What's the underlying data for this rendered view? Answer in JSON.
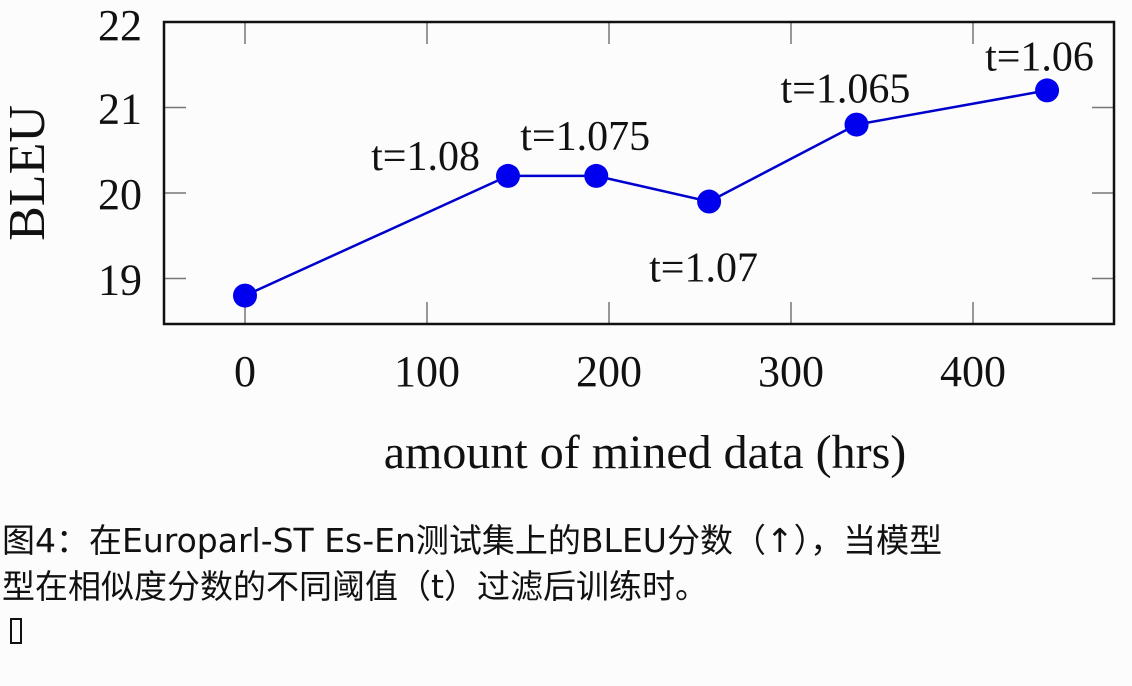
{
  "chart_data": {
    "type": "line",
    "title": "",
    "xlabel": "amount of mined data (hrs)",
    "ylabel": "BLEU",
    "xlim": [
      -45,
      477
    ],
    "ylim": [
      18.5,
      22
    ],
    "xticks": [
      0,
      100,
      200,
      300,
      400
    ],
    "yticks": [
      19,
      20,
      21,
      22
    ],
    "grid": false,
    "legend": null,
    "series": [
      {
        "name": "BLEU",
        "color": "#0000e6",
        "x": [
          0,
          144.5,
          193,
          255,
          336,
          440.7
        ],
        "values": [
          18.8,
          20.2,
          20.2,
          19.9,
          20.8,
          21.2
        ],
        "annotations": [
          "",
          "t=1.08",
          "t=1.075",
          "t=1.07",
          "t=1.065",
          "t=1.06"
        ]
      }
    ]
  },
  "caption": {
    "line1": "图4：在Europarl-ST Es-En测试集上的BLEU分数（↑），当模型",
    "line2": "型在相似度分数的不同阈值（t）过滤后训练时。"
  }
}
